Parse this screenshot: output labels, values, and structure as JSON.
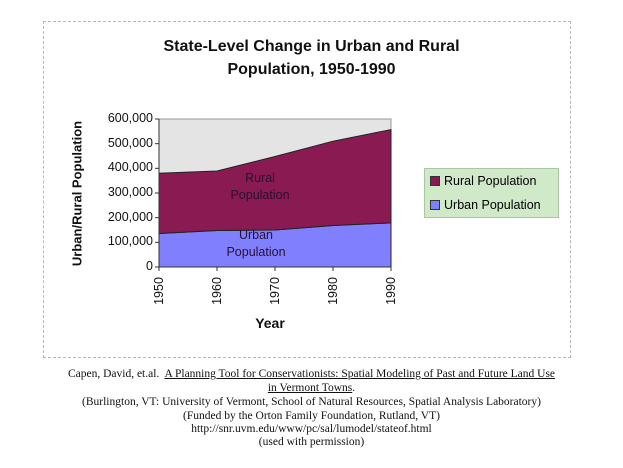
{
  "chart_data": {
    "type": "area",
    "stacked": true,
    "title": "State-Level Change in Urban and Rural Population, 1950-1990",
    "title_lines": [
      "State-Level Change in Urban and Rural",
      "Population, 1950-1990"
    ],
    "xlabel": "Year",
    "ylabel": "Urban/Rural Population",
    "x": [
      "1950",
      "1960",
      "1970",
      "1980",
      "1990"
    ],
    "ylim": [
      0,
      600000
    ],
    "yticks": [
      "0",
      "100,000",
      "200,000",
      "300,000",
      "400,000",
      "500,000",
      "600,000"
    ],
    "series": [
      {
        "name": "Urban Population",
        "values": [
          136000,
          148000,
          150000,
          168000,
          179000
        ],
        "color": "#8080ff",
        "label_lines": [
          "Urban",
          "Population"
        ]
      },
      {
        "name": "Rural Population",
        "values": [
          244000,
          241000,
          298000,
          342000,
          378000
        ],
        "color": "#8a1a52",
        "label_lines": [
          "Rural",
          "Population"
        ]
      }
    ],
    "plot_background": "#e4e4e4",
    "legend": {
      "placement": "right",
      "background": "#cfe9c9",
      "entries": [
        "Rural Population",
        "Urban Population"
      ]
    },
    "grid": false
  },
  "caption": {
    "author": "Capen, David, et.al.",
    "work_title_line1": "A Planning Tool for Conservationists:  Spatial Modeling of Past and Future Land Use",
    "work_title_line2": "in Vermont Towns",
    "publisher": "(Burlington, VT: University of Vermont, School of Natural Resources, Spatial Analysis Laboratory)",
    "funding": "(Funded by the Orton Family Foundation, Rutland, VT)",
    "url": "http://snr.uvm.edu/www/pc/sal/lumodel/stateof.html",
    "permission": "(used with permission)"
  }
}
